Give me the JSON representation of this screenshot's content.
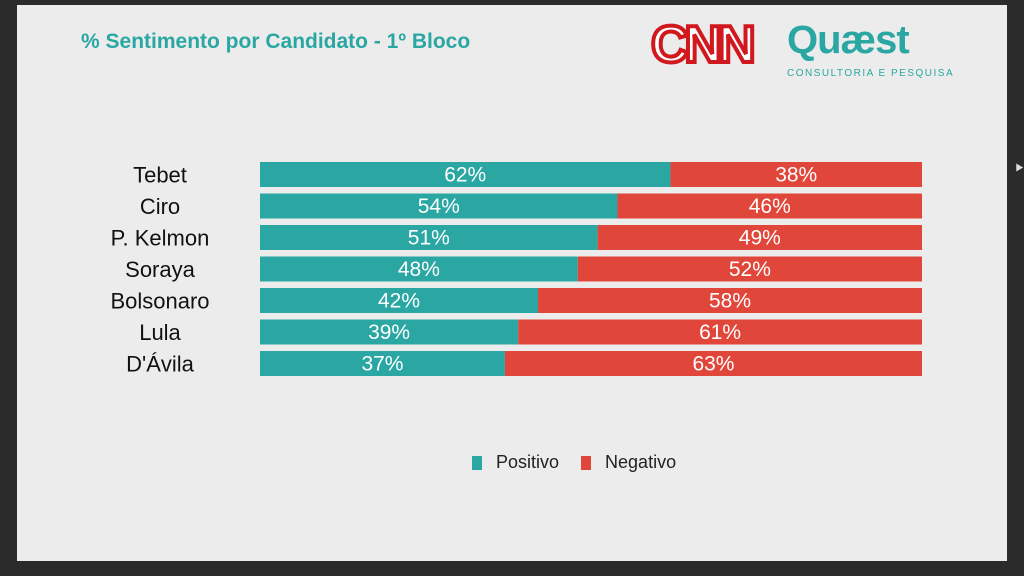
{
  "title": "% Sentimento por Candidato - 1º Bloco",
  "logos": {
    "cnn": "CNN",
    "quaest": "Quæst",
    "quaest_sub": "CONSULTORIA E PESQUISA"
  },
  "colors": {
    "positivo": "#2aa7a3",
    "negativo": "#e0473a"
  },
  "legend": [
    "Positivo",
    "Negativo"
  ],
  "chart_data": {
    "type": "bar",
    "orientation": "horizontal",
    "stacked": true,
    "title": "% Sentimento por Candidato - 1º Bloco",
    "categories": [
      "Tebet",
      "Ciro",
      "P. Kelmon",
      "Soraya",
      "Bolsonaro",
      "Lula",
      "D'Ávila"
    ],
    "series": [
      {
        "name": "Positivo",
        "values": [
          62,
          54,
          51,
          48,
          42,
          39,
          37
        ]
      },
      {
        "name": "Negativo",
        "values": [
          38,
          46,
          49,
          52,
          58,
          61,
          63
        ]
      }
    ],
    "value_labels": [
      [
        "62%",
        "54%",
        "51%",
        "48%",
        "42%",
        "39%",
        "37%"
      ],
      [
        "38%",
        "46%",
        "49%",
        "52%",
        "58%",
        "61%",
        "63%"
      ]
    ],
    "xlim": [
      0,
      100
    ],
    "grid": false,
    "legend_position": "bottom"
  }
}
